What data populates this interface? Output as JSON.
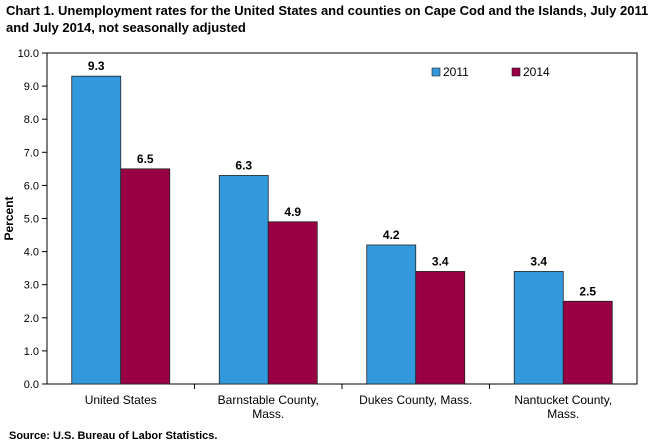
{
  "chart_data": {
    "type": "bar",
    "title": "Chart 1. Unemployment rates for the United States and counties on Cape Cod and the Islands, July 2011 and July 2014, not seasonally adjusted",
    "xlabel": "",
    "ylabel": "Percent",
    "ylim": [
      0,
      10
    ],
    "yticks": [
      "0.0",
      "1.0",
      "2.0",
      "3.0",
      "4.0",
      "5.0",
      "6.0",
      "7.0",
      "8.0",
      "9.0",
      "10.0"
    ],
    "grid": false,
    "legend_position": "top-right",
    "categories": [
      [
        "United States"
      ],
      [
        "Barnstable County,",
        "Mass."
      ],
      [
        "Dukes County, Mass."
      ],
      [
        "Nantucket County,",
        "Mass."
      ]
    ],
    "series": [
      {
        "name": "2011",
        "color": "#3399DD",
        "values": [
          9.3,
          6.3,
          4.2,
          3.4
        ],
        "labels": [
          "9.3",
          "6.3",
          "4.2",
          "3.4"
        ]
      },
      {
        "name": "2014",
        "color": "#990044",
        "values": [
          6.5,
          4.9,
          3.4,
          2.5
        ],
        "labels": [
          "6.5",
          "4.9",
          "3.4",
          "2.5"
        ]
      }
    ],
    "source": "Source: U.S. Bureau of Labor Statistics."
  }
}
